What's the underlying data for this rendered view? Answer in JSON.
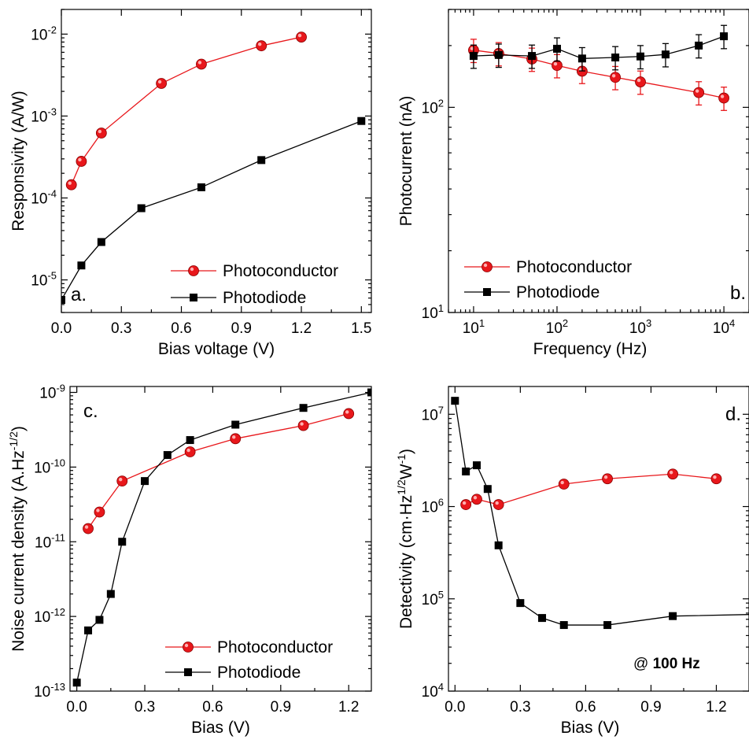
{
  "colors": {
    "photoconductor": "#e8171b",
    "photodiode": "#000000"
  },
  "chart_data": [
    {
      "panel": "a.",
      "type": "line",
      "xlabel": "Bias voltage (V)",
      "ylabel": "Responsivity (A/W)",
      "xscale": "linear",
      "yscale": "log",
      "xlim": [
        0,
        1.55
      ],
      "ylim": [
        4e-06,
        0.02
      ],
      "xticks": [
        0,
        0.3,
        0.6,
        0.9,
        1.2,
        1.5
      ],
      "xtick_labels": [
        "0.0",
        "0.3",
        "0.6",
        "0.9",
        "1.2",
        "1.5"
      ],
      "yticks": [
        1e-05,
        0.0001,
        0.001,
        0.01
      ],
      "ytick_labels": [
        [
          "10",
          "-5"
        ],
        [
          "10",
          "-4"
        ],
        [
          "10",
          "-3"
        ],
        [
          "10",
          "-2"
        ]
      ],
      "legend_position": "bottom-right",
      "series": [
        {
          "name": "Photoconductor",
          "marker": "circle",
          "color": "#e8171b",
          "x": [
            0.05,
            0.1,
            0.2,
            0.5,
            0.7,
            1.0,
            1.2
          ],
          "y": [
            0.000145,
            0.00028,
            0.00062,
            0.0025,
            0.0043,
            0.0072,
            0.0092
          ]
        },
        {
          "name": "Photodiode",
          "marker": "square",
          "color": "#000000",
          "x": [
            0,
            0.1,
            0.2,
            0.4,
            0.7,
            1.0,
            1.5
          ],
          "y": [
            5.7e-06,
            1.5e-05,
            2.9e-05,
            7.5e-05,
            0.000135,
            0.00029,
            0.00087
          ]
        }
      ]
    },
    {
      "panel": "b.",
      "type": "line",
      "xlabel": "Frequency (Hz)",
      "ylabel": "Photocurrent (nA)",
      "xscale": "log",
      "yscale": "log",
      "xlim": [
        5,
        20000
      ],
      "ylim": [
        10,
        300
      ],
      "xticks": [
        10,
        100,
        1000,
        10000
      ],
      "xtick_labels": [
        [
          "10",
          "1"
        ],
        [
          "10",
          "2"
        ],
        [
          "10",
          "3"
        ],
        [
          "10",
          "4"
        ]
      ],
      "yticks": [
        10,
        100
      ],
      "ytick_labels": [
        [
          "10",
          "1"
        ],
        [
          "10",
          "2"
        ]
      ],
      "legend_position": "bottom-left",
      "error_bars": true,
      "series": [
        {
          "name": "Photoconductor",
          "marker": "circle",
          "color": "#e8171b",
          "x": [
            10,
            20,
            50,
            100,
            200,
            500,
            1000,
            5000,
            10000
          ],
          "y": [
            190,
            183,
            172,
            160,
            150,
            140,
            133,
            118,
            111
          ]
        },
        {
          "name": "Photodiode",
          "marker": "square",
          "color": "#000000",
          "x": [
            10,
            20,
            50,
            100,
            200,
            500,
            1000,
            2000,
            5000,
            10000
          ],
          "y": [
            178,
            180,
            178,
            193,
            173,
            175,
            177,
            181,
            200,
            222
          ]
        }
      ]
    },
    {
      "panel": "c.",
      "type": "line",
      "xlabel": "Bias (V)",
      "ylabel": "Noise current density (A.Hz-1/2)",
      "xscale": "linear",
      "yscale": "log",
      "xlim": [
        -0.03,
        1.3
      ],
      "ylim": [
        1e-13,
        1.2e-09
      ],
      "xticks": [
        0,
        0.3,
        0.6,
        0.9,
        1.2
      ],
      "xtick_labels": [
        "0.0",
        "0.3",
        "0.6",
        "0.9",
        "1.2"
      ],
      "yticks": [
        1e-13,
        1e-12,
        1e-11,
        1e-10,
        1e-09
      ],
      "ytick_labels": [
        [
          "10",
          "-13"
        ],
        [
          "10",
          "-12"
        ],
        [
          "10",
          "-11"
        ],
        [
          "10",
          "-10"
        ],
        [
          "10",
          "-9"
        ]
      ],
      "legend_position": "bottom-right",
      "series": [
        {
          "name": "Photoconductor",
          "marker": "circle",
          "color": "#e8171b",
          "x": [
            0.05,
            0.1,
            0.2,
            0.5,
            0.7,
            1.0,
            1.2
          ],
          "y": [
            1.5e-11,
            2.5e-11,
            6.5e-11,
            1.6e-10,
            2.4e-10,
            3.6e-10,
            5.2e-10
          ]
        },
        {
          "name": "Photodiode",
          "marker": "square",
          "color": "#000000",
          "x": [
            0,
            0.05,
            0.1,
            0.15,
            0.2,
            0.3,
            0.4,
            0.5,
            0.7,
            1.0,
            1.3
          ],
          "y": [
            1.3e-13,
            6.5e-13,
            9e-13,
            2e-12,
            1e-11,
            6.5e-11,
            1.45e-10,
            2.3e-10,
            3.7e-10,
            6.2e-10,
            1e-09
          ]
        }
      ]
    },
    {
      "panel": "d.",
      "type": "line",
      "xlabel": "Bias (V)",
      "ylabel": "Detectivity (cm·Hz1/2W-1)",
      "xscale": "linear",
      "yscale": "log",
      "xlim": [
        -0.03,
        1.35
      ],
      "ylim": [
        10000.0,
        20000000.0
      ],
      "xticks": [
        0,
        0.3,
        0.6,
        0.9,
        1.2
      ],
      "xtick_labels": [
        "0.0",
        "0.3",
        "0.6",
        "0.9",
        "1.2"
      ],
      "yticks": [
        10000.0,
        100000.0,
        1000000.0,
        10000000.0
      ],
      "ytick_labels": [
        [
          "10",
          "4"
        ],
        [
          "10",
          "5"
        ],
        [
          "10",
          "6"
        ],
        [
          "10",
          "7"
        ]
      ],
      "annotation": {
        "prefix": "@ ",
        "bold": "100 Hz"
      },
      "series": [
        {
          "name": "Photoconductor",
          "marker": "circle",
          "color": "#e8171b",
          "x": [
            0.05,
            0.1,
            0.2,
            0.5,
            0.7,
            1.0,
            1.2
          ],
          "y": [
            1050000.0,
            1200000.0,
            1050000.0,
            1750000.0,
            2000000.0,
            2250000.0,
            2000000.0
          ]
        },
        {
          "name": "Photodiode",
          "marker": "square",
          "color": "#000000",
          "x": [
            0,
            0.05,
            0.1,
            0.15,
            0.2,
            0.3,
            0.4,
            0.5,
            0.7,
            1.0,
            1.4
          ],
          "y": [
            14000000.0,
            2400000.0,
            2800000.0,
            1550000.0,
            380000.0,
            90000.0,
            62000.0,
            52000.0,
            52000.0,
            65000.0,
            68000.0
          ]
        }
      ]
    }
  ]
}
